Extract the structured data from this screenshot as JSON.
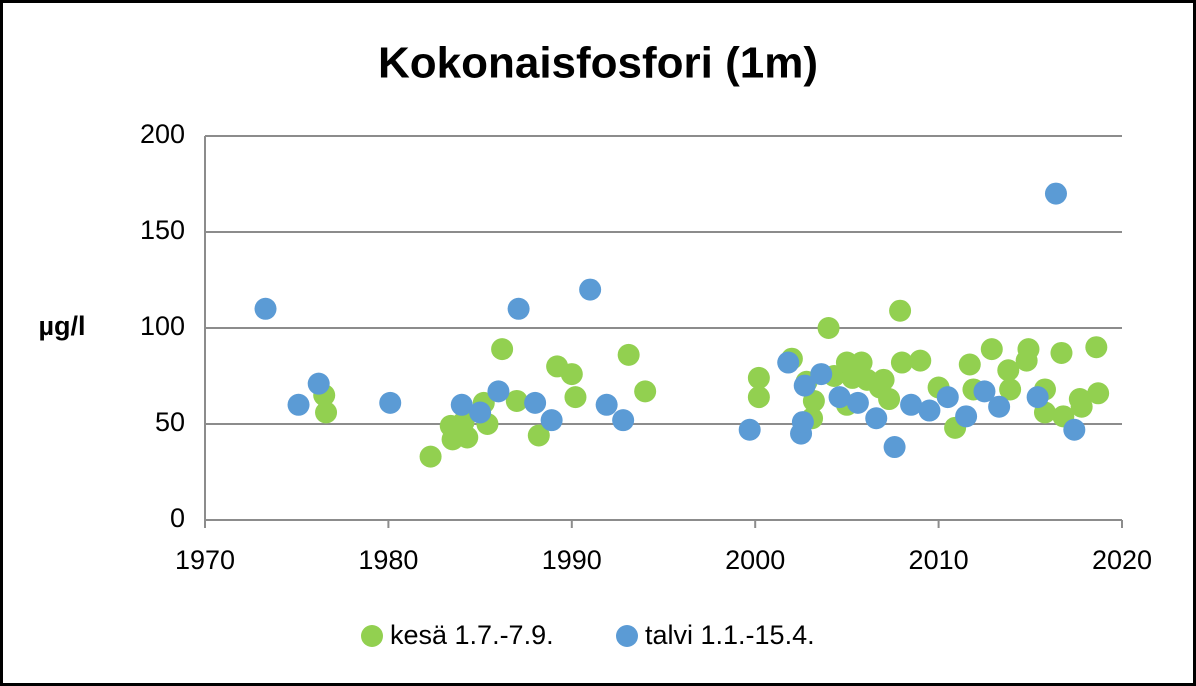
{
  "chart_data": {
    "type": "scatter",
    "title": "Kokonaisfosfori (1m)",
    "y_label": "µg/l",
    "xlim": [
      1970,
      2020
    ],
    "xticks": [
      1970,
      1980,
      1990,
      2000,
      2010,
      2020
    ],
    "ylim": [
      0,
      200
    ],
    "yticks": [
      0,
      50,
      100,
      150,
      200
    ],
    "grid": true,
    "legend": "bottom",
    "series": [
      {
        "name": "kesä 1.7.-7.9.",
        "color": "#92d050",
        "x": [
          1976.5,
          1976.6,
          1982.3,
          1983.4,
          1983.5,
          1983.8,
          1984.1,
          1984.3,
          1985.4,
          1985.2,
          1986.2,
          1987.0,
          1988.2,
          1989.2,
          1990.0,
          1990.2,
          1993.1,
          1994.0,
          2000.2,
          2000.2,
          2002.0,
          2002.8,
          2003.1,
          2003.2,
          2004.0,
          2004.3,
          2005.0,
          2005.0,
          2005.3,
          2005.8,
          2006.1,
          2006.8,
          2007.0,
          2007.3,
          2007.9,
          2008.0,
          2009.0,
          2010.0,
          2010.9,
          2011.7,
          2011.9,
          2012.9,
          2013.8,
          2013.9,
          2014.8,
          2014.9,
          2015.8,
          2015.8,
          2016.7,
          2016.8,
          2017.7,
          2017.8,
          2018.6,
          2018.7
        ],
        "y": [
          65,
          56,
          33,
          49,
          42,
          47,
          51,
          43,
          50,
          61,
          89,
          62,
          44,
          80,
          76,
          64,
          86,
          67,
          74,
          64,
          84,
          72,
          53,
          62,
          100,
          75,
          82,
          60,
          74,
          82,
          73,
          69,
          73,
          63,
          109,
          82,
          83,
          69,
          48,
          81,
          68,
          89,
          78,
          68,
          83,
          89,
          68,
          56,
          87,
          54,
          63,
          59,
          90,
          66
        ]
      },
      {
        "name": "talvi 1.1.-15.4.",
        "color": "#5b9bd5",
        "x": [
          1973.3,
          1975.1,
          1976.2,
          1980.1,
          1984.0,
          1985.0,
          1986.0,
          1987.1,
          1988.0,
          1988.9,
          1991.0,
          1991.9,
          1992.8,
          1999.7,
          2001.8,
          2002.5,
          2002.6,
          2002.7,
          2003.6,
          2004.6,
          2005.6,
          2006.6,
          2007.6,
          2008.5,
          2009.5,
          2010.5,
          2011.5,
          2012.5,
          2013.3,
          2015.4,
          2016.4,
          2017.4
        ],
        "y": [
          110,
          60,
          71,
          61,
          60,
          56,
          67,
          110,
          61,
          52,
          120,
          60,
          52,
          47,
          82,
          45,
          51,
          70,
          76,
          64,
          61,
          53,
          38,
          60,
          57,
          64,
          54,
          67,
          59,
          64,
          170,
          47
        ]
      }
    ]
  }
}
